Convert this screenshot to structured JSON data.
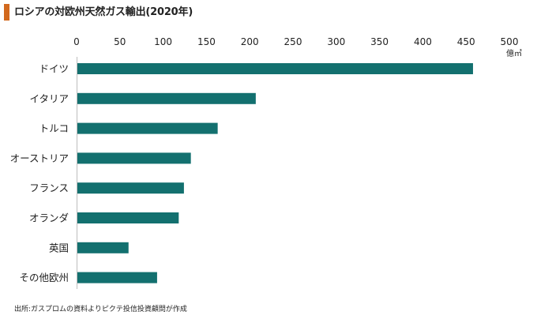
{
  "title": "ロシアの対欧州天然ガス輸出(2020年)",
  "source": "出所:ガスプロムの資料よりピクテ投信投資顧問が作成",
  "colors": {
    "accent": "#d2691e",
    "bar": "#13706f"
  },
  "chart_data": {
    "type": "bar",
    "orientation": "horizontal",
    "title": "ロシアの対欧州天然ガス輸出(2020年)",
    "unit": "億㎥",
    "xlim": [
      0,
      500
    ],
    "ticks": [
      0,
      50,
      100,
      150,
      200,
      250,
      300,
      350,
      400,
      450,
      500
    ],
    "x_axis_position": "top",
    "grid": false,
    "categories": [
      "ドイツ",
      "イタリア",
      "トルコ",
      "オーストリア",
      "フランス",
      "オランダ",
      "英国",
      "その他欧州"
    ],
    "values": [
      458,
      207,
      163,
      132,
      124,
      118,
      60,
      93
    ]
  }
}
